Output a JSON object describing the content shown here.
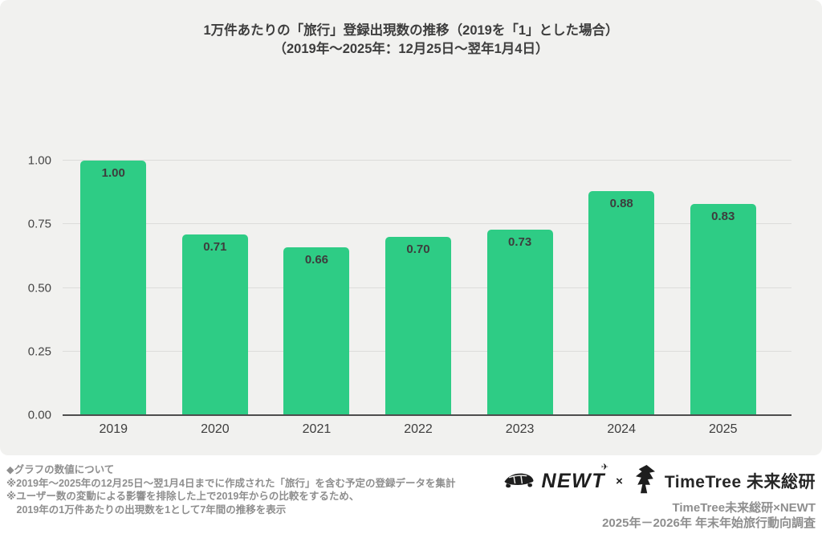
{
  "chart": {
    "title_line1": "1万件あたりの「旅行」登録出現数の推移（2019を「1」とした場合）",
    "title_line2": "（2019年～2025年：12月25日～翌年1月4日）"
  },
  "chart_data": {
    "type": "bar",
    "title": "1万件あたりの「旅行」登録出現数の推移（2019を「1」とした場合）（2019年～2025年：12月25日～翌年1月4日）",
    "categories": [
      "2019",
      "2020",
      "2021",
      "2022",
      "2023",
      "2024",
      "2025"
    ],
    "values": [
      1.0,
      0.71,
      0.66,
      0.7,
      0.73,
      0.88,
      0.83
    ],
    "value_labels": [
      "1.00",
      "0.71",
      "0.66",
      "0.70",
      "0.73",
      "0.88",
      "0.83"
    ],
    "xlabel": "",
    "ylabel": "",
    "ylim": [
      0,
      1.0
    ],
    "y_ticks": [
      0,
      0.25,
      0.5,
      0.75,
      1.0
    ],
    "y_tick_labels": [
      "0.00",
      "0.25",
      "0.50",
      "0.75",
      "1.00"
    ],
    "grid": true,
    "legend": false,
    "bar_color": "#2ecc85"
  },
  "footer": {
    "notes": [
      "◆グラフの数値について",
      "※2019年～2025年の12月25日～翌1月4日までに作成された「旅行」を含む予定の登録データを集計",
      "※ユーザー数の変動による影響を排除した上で2019年からの比較をするため、",
      "　2019年の1万件あたりの出現数を1として7年間の推移を表示"
    ],
    "logos": {
      "newt_label": "NEWT",
      "plane_mark": "✈",
      "cross": "×",
      "timetree_label": "TimeTree 未来総研"
    },
    "credit_line1": "TimeTree未来総研×NEWT",
    "credit_line2": "2025年－2026年 年末年始旅行動向調査"
  },
  "colors": {
    "card_background": "#f1f1ef",
    "bar_green": "#2ecc85",
    "grid_line": "#dcdcda",
    "axis_line": "#4d4d4d",
    "note_gray": "#8e8e8e",
    "logo_dark": "#1e1e1e",
    "text_dark": "#3d3d3d"
  }
}
